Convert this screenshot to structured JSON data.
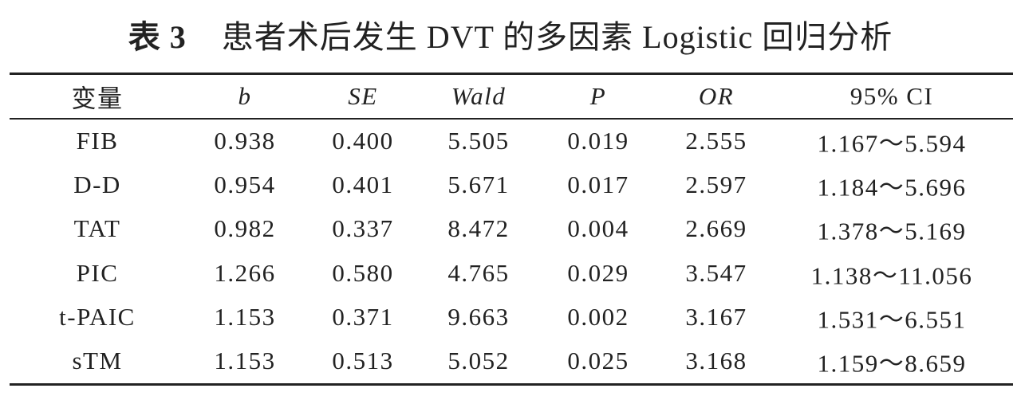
{
  "title": {
    "label": "表 3",
    "text": "患者术后发生 DVT 的多因素 Logistic 回归分析"
  },
  "table": {
    "headers": [
      "变量",
      "b",
      "SE",
      "Wald",
      "P",
      "OR",
      "95% CI"
    ],
    "rows": [
      [
        "FIB",
        "0.938",
        "0.400",
        "5.505",
        "0.019",
        "2.555",
        "1.167～5.594"
      ],
      [
        "D-D",
        "0.954",
        "0.401",
        "5.671",
        "0.017",
        "2.597",
        "1.184～5.696"
      ],
      [
        "TAT",
        "0.982",
        "0.337",
        "8.472",
        "0.004",
        "2.669",
        "1.378～5.169"
      ],
      [
        "PIC",
        "1.266",
        "0.580",
        "4.765",
        "0.029",
        "3.547",
        "1.138～11.056"
      ],
      [
        "t-PAIC",
        "1.153",
        "0.371",
        "9.663",
        "0.002",
        "3.167",
        "1.531～6.551"
      ],
      [
        "sTM",
        "1.153",
        "0.513",
        "5.052",
        "0.025",
        "3.168",
        "1.159～8.659"
      ]
    ]
  }
}
